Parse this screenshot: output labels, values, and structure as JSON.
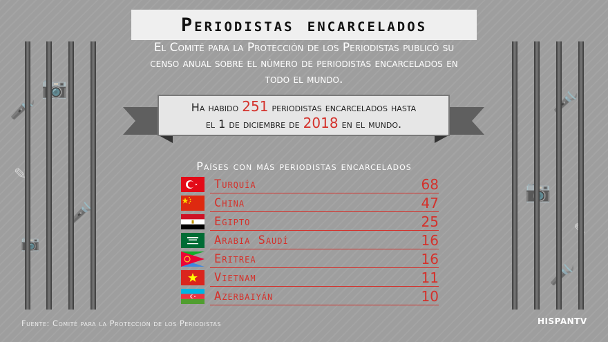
{
  "title": "Periodistas encarcelados",
  "intro": {
    "line1": "El Comité para la Protección de los Periodistas publicó su",
    "line2": "censo anual sobre el número de periodistas encarcelados en",
    "line3": "todo el mundo."
  },
  "banner": {
    "part1": "Ha habido ",
    "count": "251",
    "part2": " periodistas encarcelados hasta",
    "part3": "el 1 de diciembre de ",
    "year": "2018",
    "part4": " en el mundo."
  },
  "list_title": "Países con más periodistas encarcelados",
  "rows": [
    {
      "country": "Turquía",
      "count": "68",
      "flag_icon": "turkey-flag-icon"
    },
    {
      "country": "China",
      "count": "47",
      "flag_icon": "china-flag-icon"
    },
    {
      "country": "Egipto",
      "count": "25",
      "flag_icon": "egypt-flag-icon"
    },
    {
      "country": "Arabia Saudí",
      "count": "16",
      "flag_icon": "saudi-arabia-flag-icon"
    },
    {
      "country": "Eritrea",
      "count": "16",
      "flag_icon": "eritrea-flag-icon"
    },
    {
      "country": "Vietnam",
      "count": "11",
      "flag_icon": "vietnam-flag-icon"
    },
    {
      "country": "Azerbaiyán",
      "count": "10",
      "flag_icon": "azerbaijan-flag-icon"
    }
  ],
  "source": "Fuente: Comité para la Protección de los Periodistas",
  "logo": "HISPANTV",
  "colors": {
    "accent": "#d4312b",
    "background": "#9e9e9e",
    "title_box": "#efefef",
    "banner_box": "#e6e6e6"
  }
}
